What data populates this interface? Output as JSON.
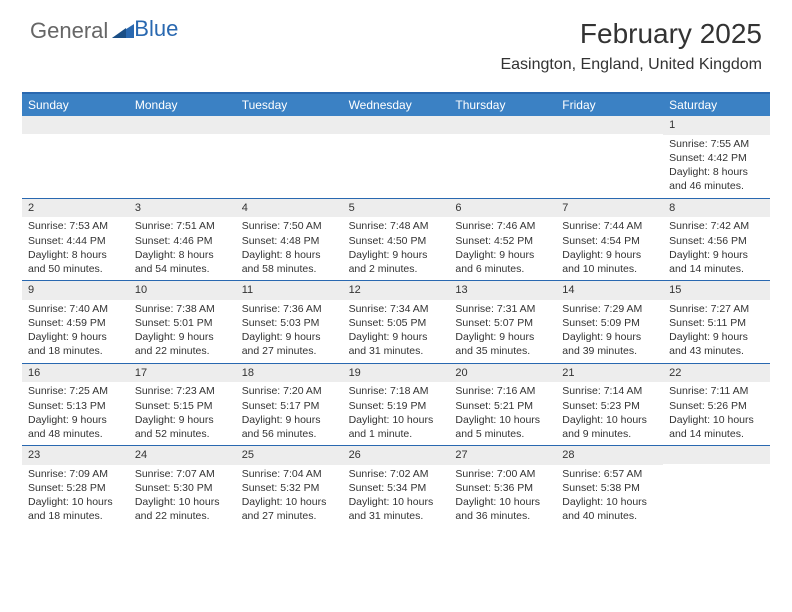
{
  "logo": {
    "text1": "General",
    "text2": "Blue"
  },
  "title": "February 2025",
  "location": "Easington, England, United Kingdom",
  "colors": {
    "header_bg": "#3b81c4",
    "accent_border": "#2968b0",
    "daynum_bg": "#ededed",
    "text": "#333333",
    "logo_blue": "#2968b0"
  },
  "day_names": [
    "Sunday",
    "Monday",
    "Tuesday",
    "Wednesday",
    "Thursday",
    "Friday",
    "Saturday"
  ],
  "weeks": [
    [
      null,
      null,
      null,
      null,
      null,
      null,
      {
        "n": "1",
        "sr": "Sunrise: 7:55 AM",
        "ss": "Sunset: 4:42 PM",
        "dl": "Daylight: 8 hours and 46 minutes."
      }
    ],
    [
      {
        "n": "2",
        "sr": "Sunrise: 7:53 AM",
        "ss": "Sunset: 4:44 PM",
        "dl": "Daylight: 8 hours and 50 minutes."
      },
      {
        "n": "3",
        "sr": "Sunrise: 7:51 AM",
        "ss": "Sunset: 4:46 PM",
        "dl": "Daylight: 8 hours and 54 minutes."
      },
      {
        "n": "4",
        "sr": "Sunrise: 7:50 AM",
        "ss": "Sunset: 4:48 PM",
        "dl": "Daylight: 8 hours and 58 minutes."
      },
      {
        "n": "5",
        "sr": "Sunrise: 7:48 AM",
        "ss": "Sunset: 4:50 PM",
        "dl": "Daylight: 9 hours and 2 minutes."
      },
      {
        "n": "6",
        "sr": "Sunrise: 7:46 AM",
        "ss": "Sunset: 4:52 PM",
        "dl": "Daylight: 9 hours and 6 minutes."
      },
      {
        "n": "7",
        "sr": "Sunrise: 7:44 AM",
        "ss": "Sunset: 4:54 PM",
        "dl": "Daylight: 9 hours and 10 minutes."
      },
      {
        "n": "8",
        "sr": "Sunrise: 7:42 AM",
        "ss": "Sunset: 4:56 PM",
        "dl": "Daylight: 9 hours and 14 minutes."
      }
    ],
    [
      {
        "n": "9",
        "sr": "Sunrise: 7:40 AM",
        "ss": "Sunset: 4:59 PM",
        "dl": "Daylight: 9 hours and 18 minutes."
      },
      {
        "n": "10",
        "sr": "Sunrise: 7:38 AM",
        "ss": "Sunset: 5:01 PM",
        "dl": "Daylight: 9 hours and 22 minutes."
      },
      {
        "n": "11",
        "sr": "Sunrise: 7:36 AM",
        "ss": "Sunset: 5:03 PM",
        "dl": "Daylight: 9 hours and 27 minutes."
      },
      {
        "n": "12",
        "sr": "Sunrise: 7:34 AM",
        "ss": "Sunset: 5:05 PM",
        "dl": "Daylight: 9 hours and 31 minutes."
      },
      {
        "n": "13",
        "sr": "Sunrise: 7:31 AM",
        "ss": "Sunset: 5:07 PM",
        "dl": "Daylight: 9 hours and 35 minutes."
      },
      {
        "n": "14",
        "sr": "Sunrise: 7:29 AM",
        "ss": "Sunset: 5:09 PM",
        "dl": "Daylight: 9 hours and 39 minutes."
      },
      {
        "n": "15",
        "sr": "Sunrise: 7:27 AM",
        "ss": "Sunset: 5:11 PM",
        "dl": "Daylight: 9 hours and 43 minutes."
      }
    ],
    [
      {
        "n": "16",
        "sr": "Sunrise: 7:25 AM",
        "ss": "Sunset: 5:13 PM",
        "dl": "Daylight: 9 hours and 48 minutes."
      },
      {
        "n": "17",
        "sr": "Sunrise: 7:23 AM",
        "ss": "Sunset: 5:15 PM",
        "dl": "Daylight: 9 hours and 52 minutes."
      },
      {
        "n": "18",
        "sr": "Sunrise: 7:20 AM",
        "ss": "Sunset: 5:17 PM",
        "dl": "Daylight: 9 hours and 56 minutes."
      },
      {
        "n": "19",
        "sr": "Sunrise: 7:18 AM",
        "ss": "Sunset: 5:19 PM",
        "dl": "Daylight: 10 hours and 1 minute."
      },
      {
        "n": "20",
        "sr": "Sunrise: 7:16 AM",
        "ss": "Sunset: 5:21 PM",
        "dl": "Daylight: 10 hours and 5 minutes."
      },
      {
        "n": "21",
        "sr": "Sunrise: 7:14 AM",
        "ss": "Sunset: 5:23 PM",
        "dl": "Daylight: 10 hours and 9 minutes."
      },
      {
        "n": "22",
        "sr": "Sunrise: 7:11 AM",
        "ss": "Sunset: 5:26 PM",
        "dl": "Daylight: 10 hours and 14 minutes."
      }
    ],
    [
      {
        "n": "23",
        "sr": "Sunrise: 7:09 AM",
        "ss": "Sunset: 5:28 PM",
        "dl": "Daylight: 10 hours and 18 minutes."
      },
      {
        "n": "24",
        "sr": "Sunrise: 7:07 AM",
        "ss": "Sunset: 5:30 PM",
        "dl": "Daylight: 10 hours and 22 minutes."
      },
      {
        "n": "25",
        "sr": "Sunrise: 7:04 AM",
        "ss": "Sunset: 5:32 PM",
        "dl": "Daylight: 10 hours and 27 minutes."
      },
      {
        "n": "26",
        "sr": "Sunrise: 7:02 AM",
        "ss": "Sunset: 5:34 PM",
        "dl": "Daylight: 10 hours and 31 minutes."
      },
      {
        "n": "27",
        "sr": "Sunrise: 7:00 AM",
        "ss": "Sunset: 5:36 PM",
        "dl": "Daylight: 10 hours and 36 minutes."
      },
      {
        "n": "28",
        "sr": "Sunrise: 6:57 AM",
        "ss": "Sunset: 5:38 PM",
        "dl": "Daylight: 10 hours and 40 minutes."
      },
      null
    ]
  ]
}
